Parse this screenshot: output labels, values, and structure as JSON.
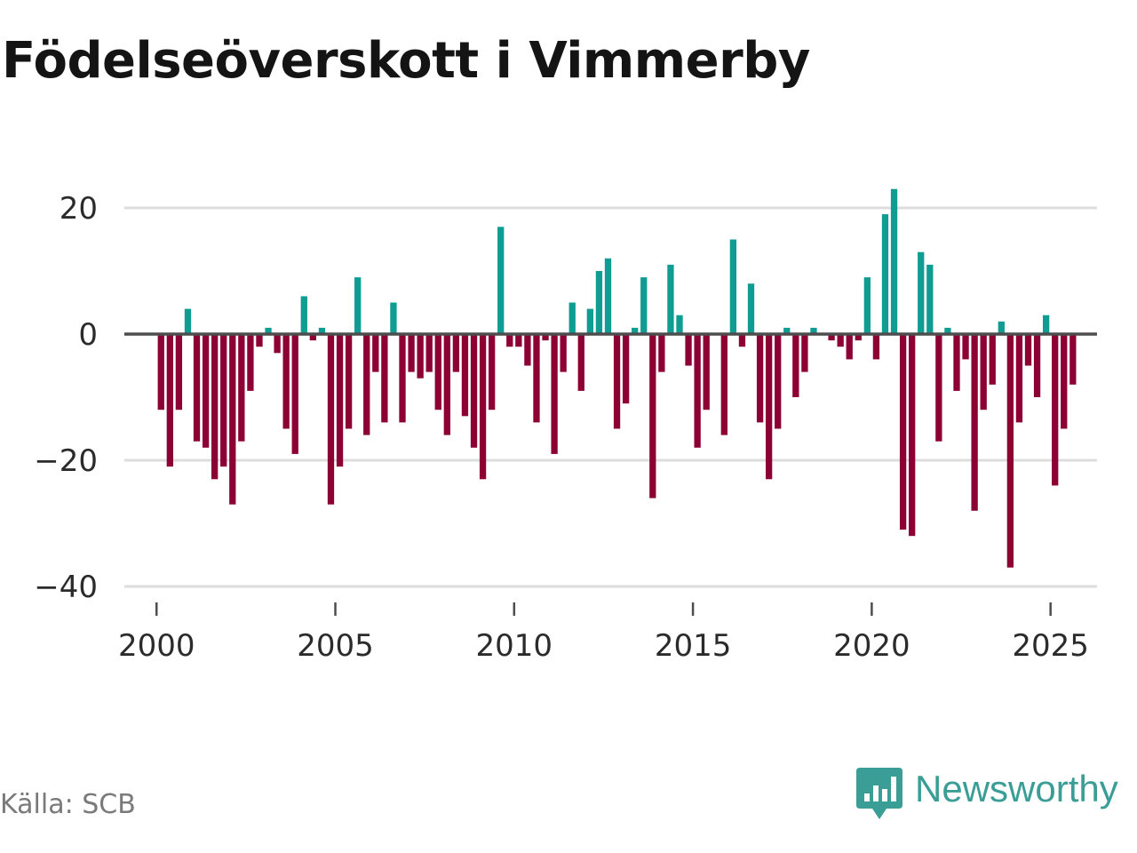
{
  "chart_data": {
    "type": "bar",
    "title": "Födelseöverskott i Vimmerby",
    "xlabel": "",
    "ylabel": "",
    "xlim": [
      1999.1,
      2026.3
    ],
    "ylim": [
      -40,
      24
    ],
    "yticks": [
      20,
      0,
      -20,
      -40
    ],
    "ytick_labels": [
      "20",
      "0",
      "−20",
      "−40"
    ],
    "xticks": [
      2000,
      2005,
      2010,
      2015,
      2020,
      2025
    ],
    "xtick_labels": [
      "2000",
      "2005",
      "2010",
      "2015",
      "2020",
      "2025"
    ],
    "grid": true,
    "legend": "none",
    "frequency": "monthly, plotted every third month (quarterly)",
    "x_start": 2000.125,
    "x_step": 0.25,
    "positive_color": "#0e9c93",
    "negative_color": "#8c0034",
    "values": [
      -12,
      -21,
      -12,
      4,
      -17,
      -18,
      -23,
      -21,
      -27,
      -17,
      -9,
      -2,
      1,
      -3,
      -15,
      -19,
      6,
      -1,
      1,
      -27,
      -21,
      -15,
      9,
      -16,
      -6,
      -14,
      5,
      -14,
      -6,
      -7,
      -6,
      -12,
      -16,
      -6,
      -13,
      -18,
      -23,
      -12,
      17,
      -2,
      -2,
      -5,
      -14,
      -1,
      -19,
      -6,
      5,
      -9,
      4,
      10,
      12,
      -15,
      -11,
      1,
      9,
      -26,
      -6,
      11,
      3,
      -5,
      -18,
      -12,
      0,
      -16,
      15,
      -2,
      8,
      -14,
      -23,
      -15,
      1,
      -10,
      -6,
      1,
      0,
      -1,
      -2,
      -4,
      -1,
      9,
      -4,
      19,
      23,
      -31,
      -32,
      13,
      11,
      -17,
      1,
      -9,
      -4,
      -28,
      -12,
      -8,
      2,
      -37,
      -14,
      -5,
      -10,
      3,
      -24,
      -15,
      -8
    ]
  },
  "source": "Källa: SCB",
  "brand": {
    "name": "Newsworthy",
    "icon": "newsworthy-logo-icon",
    "color": "#3a9e97"
  },
  "colors": {
    "grid": "#dddddd",
    "zero_line": "#4d4d4d",
    "axis_text": "#2b2b2b"
  }
}
